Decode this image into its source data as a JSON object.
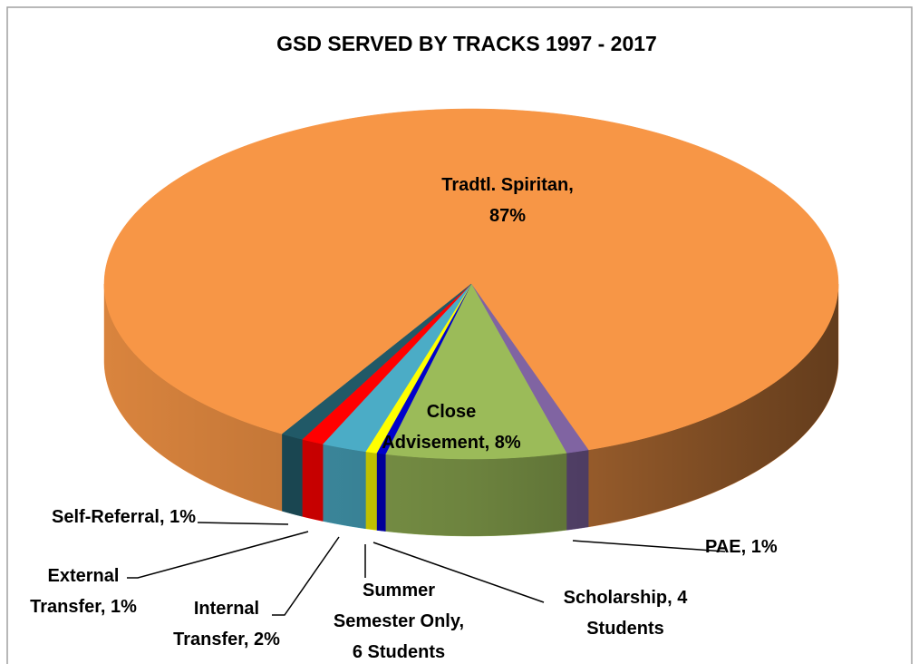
{
  "chart_data": {
    "type": "pie",
    "title": "GSD SERVED BY TRACKS 1997 - 2017",
    "categories": [
      "Tradtl. Spiritan",
      "PAE",
      "Close Advisement",
      "Scholarship",
      "Summer Semester Only",
      "Internal Transfer",
      "External Transfer",
      "Self-Referral"
    ],
    "values": [
      87,
      1,
      8,
      0.4,
      0.5,
      2,
      1,
      1
    ],
    "value_labels": [
      "Tradtl. Spiritan, 87%",
      "PAE, 1%",
      "Close Advisement, 8%",
      "Scholarship, 4 Students",
      "Summer Semester Only, 6 Students",
      "Internal Transfer, 2%",
      "External Transfer, 1%",
      "Self-Referral, 1%"
    ],
    "colors": [
      "#f79646",
      "#8064a2",
      "#9bbb59",
      "#0000cc",
      "#ffff00",
      "#4bacc6",
      "#ff0000",
      "#215967"
    ]
  }
}
